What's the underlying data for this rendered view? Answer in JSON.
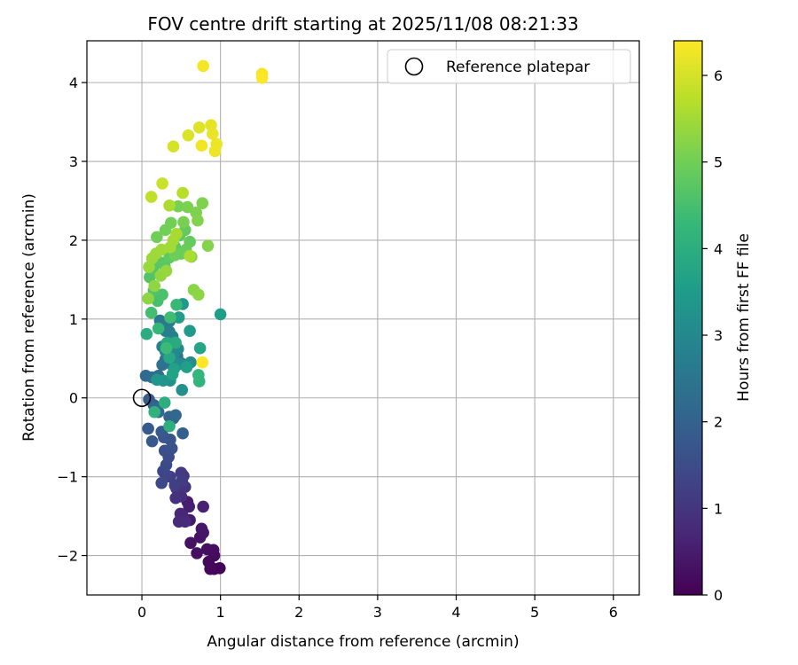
{
  "chart_data": {
    "type": "scatter",
    "title": "FOV centre drift starting at 2025/11/08 08:21:33",
    "xlabel": "Angular distance from reference (arcmin)",
    "ylabel": "Rotation from reference (arcmin)",
    "xlim": [
      -0.7,
      6.33
    ],
    "ylim": [
      -2.5,
      4.53
    ],
    "xticks": [
      0,
      1,
      2,
      3,
      4,
      5,
      6
    ],
    "yticks": [
      -2,
      -1,
      0,
      1,
      2,
      3,
      4
    ],
    "xtick_labels": [
      "0",
      "1",
      "2",
      "3",
      "4",
      "5",
      "6"
    ],
    "ytick_labels": [
      "−2",
      "−1",
      "0",
      "1",
      "2",
      "3",
      "4"
    ],
    "grid": true,
    "legend": {
      "position": "top-right",
      "entries": [
        {
          "label": "Reference platepar",
          "marker": "open-circle"
        }
      ]
    },
    "reference_point": {
      "x": 0,
      "y": 0
    },
    "colorbar": {
      "label": "Hours from first FF file",
      "colormap": "viridis",
      "range": [
        0,
        6.4
      ],
      "ticks": [
        0,
        1,
        2,
        3,
        4,
        5,
        6
      ],
      "tick_labels": [
        "0",
        "1",
        "2",
        "3",
        "4",
        "5",
        "6"
      ],
      "stops": [
        "#440154",
        "#482878",
        "#3e4989",
        "#31688e",
        "#26828e",
        "#1f9e89",
        "#35b779",
        "#6ece58",
        "#b5de2b",
        "#fde725"
      ]
    },
    "series": [
      {
        "name": "FOV centre",
        "points": [
          [
            0.92,
            -2.17,
            0.05
          ],
          [
            0.99,
            -2.16,
            0.08
          ],
          [
            0.87,
            -2.17,
            0.12
          ],
          [
            0.85,
            -2.08,
            0.15
          ],
          [
            0.92,
            -2.0,
            0.18
          ],
          [
            0.91,
            -1.93,
            0.22
          ],
          [
            0.83,
            -1.92,
            0.25
          ],
          [
            0.7,
            -1.97,
            0.28
          ],
          [
            0.62,
            -1.84,
            0.3
          ],
          [
            0.74,
            -1.77,
            0.33
          ],
          [
            0.78,
            -1.71,
            0.36
          ],
          [
            0.76,
            -1.66,
            0.4
          ],
          [
            0.61,
            -1.55,
            0.43
          ],
          [
            0.58,
            -1.32,
            0.5
          ],
          [
            0.6,
            -1.38,
            0.55
          ],
          [
            0.78,
            -1.38,
            0.6
          ],
          [
            0.52,
            -1.5,
            0.65
          ],
          [
            0.49,
            -1.47,
            0.7
          ],
          [
            0.47,
            -1.57,
            0.75
          ],
          [
            0.55,
            -1.57,
            0.8
          ],
          [
            0.5,
            -1.25,
            0.85
          ],
          [
            0.43,
            -1.27,
            0.9
          ],
          [
            0.44,
            -1.15,
            0.95
          ],
          [
            0.55,
            -1.13,
            1.0
          ],
          [
            0.53,
            -0.99,
            1.05
          ],
          [
            0.5,
            -0.95,
            1.1
          ],
          [
            0.51,
            -1.05,
            1.15
          ],
          [
            0.42,
            -1.11,
            1.2
          ],
          [
            0.36,
            -1.0,
            1.25
          ],
          [
            0.3,
            -0.97,
            1.3
          ],
          [
            0.27,
            -0.93,
            1.35
          ],
          [
            0.25,
            -1.08,
            1.4
          ],
          [
            0.31,
            -0.85,
            1.45
          ],
          [
            0.34,
            -0.75,
            1.5
          ],
          [
            0.29,
            -0.67,
            1.55
          ],
          [
            0.38,
            -0.64,
            1.6
          ],
          [
            0.36,
            -0.53,
            1.65
          ],
          [
            0.28,
            -0.5,
            1.7
          ],
          [
            0.13,
            -0.55,
            1.75
          ],
          [
            0.25,
            -0.43,
            1.8
          ],
          [
            0.08,
            -0.39,
            1.82
          ],
          [
            0.09,
            -0.02,
            1.85
          ],
          [
            0.15,
            -0.09,
            1.9
          ],
          [
            0.52,
            -0.45,
            1.95
          ],
          [
            0.4,
            -0.26,
            2.0
          ],
          [
            0.35,
            -0.24,
            2.05
          ],
          [
            0.43,
            -0.22,
            2.1
          ],
          [
            0.17,
            -0.13,
            2.15
          ],
          [
            0.21,
            -0.18,
            2.18
          ],
          [
            0.05,
            0.28,
            2.2
          ],
          [
            0.13,
            0.26,
            2.25
          ],
          [
            0.21,
            0.28,
            2.3
          ],
          [
            0.26,
            0.42,
            2.35
          ],
          [
            0.3,
            0.49,
            2.4
          ],
          [
            0.39,
            0.41,
            2.42
          ],
          [
            0.45,
            0.53,
            2.45
          ],
          [
            0.5,
            0.44,
            2.5
          ],
          [
            0.23,
            0.98,
            2.55
          ],
          [
            0.35,
            0.97,
            2.6
          ],
          [
            0.3,
            0.85,
            2.65
          ],
          [
            0.35,
            0.84,
            2.7
          ],
          [
            0.39,
            0.78,
            2.75
          ],
          [
            0.26,
            0.65,
            2.8
          ],
          [
            0.3,
            0.59,
            2.85
          ],
          [
            0.34,
            0.7,
            2.9
          ],
          [
            0.41,
            0.71,
            2.95
          ],
          [
            0.46,
            0.62,
            3.0
          ],
          [
            0.4,
            0.53,
            3.05
          ],
          [
            0.49,
            0.43,
            3.1
          ],
          [
            0.62,
            0.45,
            3.15
          ],
          [
            0.51,
            0.1,
            3.2
          ],
          [
            0.36,
            0.22,
            3.25
          ],
          [
            0.27,
            0.22,
            3.3
          ],
          [
            0.19,
            0.23,
            3.35
          ],
          [
            0.52,
            1.19,
            3.4
          ],
          [
            0.61,
            0.85,
            3.45
          ],
          [
            0.47,
            1.02,
            3.5
          ],
          [
            1.0,
            1.06,
            3.55
          ],
          [
            0.57,
            0.39,
            3.6
          ],
          [
            0.41,
            0.37,
            3.65
          ],
          [
            0.39,
            0.3,
            3.7
          ],
          [
            0.74,
            0.63,
            3.75
          ],
          [
            0.35,
            0.51,
            3.8
          ],
          [
            0.32,
            0.7,
            3.85
          ],
          [
            0.43,
            0.7,
            3.9
          ],
          [
            0.06,
            0.81,
            3.95
          ],
          [
            0.29,
            -0.06,
            4.0
          ],
          [
            0.35,
            -0.36,
            4.05
          ],
          [
            0.16,
            -0.18,
            4.1
          ],
          [
            0.73,
            0.21,
            4.15
          ],
          [
            0.72,
            0.29,
            4.2
          ],
          [
            0.21,
            0.88,
            4.25
          ],
          [
            0.44,
            1.18,
            4.3
          ],
          [
            0.31,
            0.63,
            4.35
          ],
          [
            0.36,
            1.02,
            4.4
          ],
          [
            0.12,
            1.08,
            4.45
          ],
          [
            0.2,
            1.23,
            4.5
          ],
          [
            0.26,
            1.31,
            4.55
          ],
          [
            0.15,
            1.36,
            4.6
          ],
          [
            0.1,
            1.53,
            4.65
          ],
          [
            0.14,
            1.64,
            4.7
          ],
          [
            0.23,
            1.72,
            4.72
          ],
          [
            0.29,
            1.67,
            4.75
          ],
          [
            0.35,
            1.78,
            4.78
          ],
          [
            0.42,
            1.92,
            4.8
          ],
          [
            0.48,
            2.06,
            4.82
          ],
          [
            0.55,
            2.13,
            4.85
          ],
          [
            0.61,
            1.98,
            4.88
          ],
          [
            0.56,
            1.88,
            4.9
          ],
          [
            0.5,
            1.83,
            4.92
          ],
          [
            0.42,
            1.81,
            4.95
          ],
          [
            0.19,
            2.04,
            4.98
          ],
          [
            0.3,
            2.13,
            5.0
          ],
          [
            0.37,
            2.22,
            5.02
          ],
          [
            0.46,
            2.43,
            5.05
          ],
          [
            0.53,
            2.23,
            5.08
          ],
          [
            0.58,
            2.42,
            5.1
          ],
          [
            0.69,
            2.35,
            5.12
          ],
          [
            0.77,
            2.47,
            5.15
          ],
          [
            0.71,
            2.25,
            5.18
          ],
          [
            0.84,
            1.93,
            5.2
          ],
          [
            0.63,
            1.79,
            5.22
          ],
          [
            0.66,
            1.37,
            5.25
          ],
          [
            0.72,
            1.31,
            5.28
          ],
          [
            0.08,
            1.26,
            5.3
          ],
          [
            0.16,
            1.42,
            5.32
          ],
          [
            0.24,
            1.55,
            5.35
          ],
          [
            0.31,
            1.61,
            5.38
          ],
          [
            0.09,
            1.66,
            5.4
          ],
          [
            0.13,
            1.77,
            5.42
          ],
          [
            0.18,
            1.83,
            5.45
          ],
          [
            0.25,
            1.88,
            5.48
          ],
          [
            0.36,
            1.91,
            5.5
          ],
          [
            0.4,
            2.0,
            5.52
          ],
          [
            0.44,
            2.08,
            5.55
          ],
          [
            0.61,
            1.8,
            5.58
          ],
          [
            0.35,
            2.44,
            5.6
          ],
          [
            0.52,
            2.6,
            5.7
          ],
          [
            0.12,
            2.55,
            5.8
          ],
          [
            0.26,
            2.72,
            5.9
          ],
          [
            0.4,
            3.19,
            6.0
          ],
          [
            0.59,
            3.33,
            6.05
          ],
          [
            0.73,
            3.43,
            6.1
          ],
          [
            0.88,
            3.46,
            6.15
          ],
          [
            0.9,
            3.35,
            6.2
          ],
          [
            0.95,
            3.22,
            6.22
          ],
          [
            0.93,
            3.13,
            6.25
          ],
          [
            0.76,
            3.2,
            6.28
          ],
          [
            0.78,
            4.21,
            6.3
          ],
          [
            1.53,
            4.11,
            6.35
          ],
          [
            1.53,
            4.06,
            6.38
          ],
          [
            0.77,
            0.45,
            6.4
          ]
        ]
      }
    ]
  }
}
